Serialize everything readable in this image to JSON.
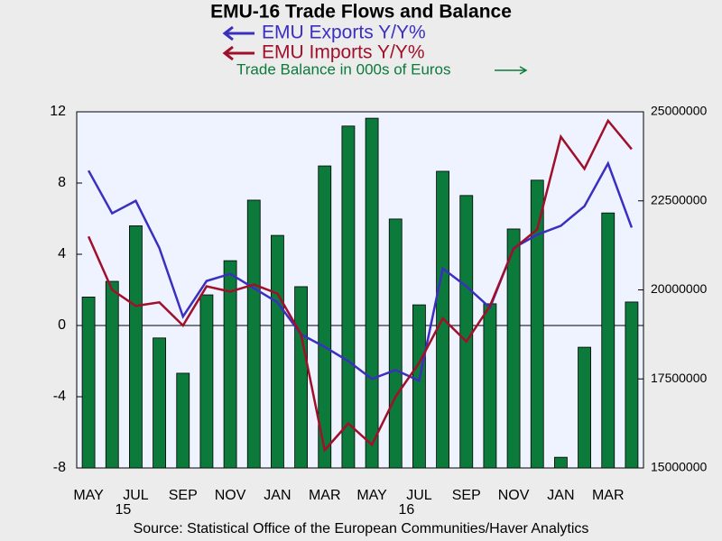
{
  "chart_data": {
    "type": "combo",
    "title": "EMU-16 Trade Flows and Balance",
    "source": "Source:  Statistical Office of the European Communities/Haver Analytics",
    "categories": [
      "MAY",
      null,
      "JUL",
      null,
      "SEP",
      null,
      "NOV",
      null,
      "JAN",
      null,
      "MAR",
      null,
      "MAY",
      null,
      "JUL",
      null,
      "SEP",
      null,
      "NOV",
      null,
      "JAN",
      null,
      "MAR",
      null
    ],
    "year_labels": [
      null,
      null,
      "15",
      null,
      null,
      null,
      null,
      null,
      null,
      null,
      null,
      null,
      null,
      null,
      "16",
      null,
      null,
      null,
      null,
      null,
      null,
      null,
      null,
      null
    ],
    "series": [
      {
        "name": "Trade Balance in 000s of Euros",
        "type": "bar",
        "axis": "y2",
        "color": "#0b7a3b",
        "values": [
          19800000,
          20240000,
          21800000,
          18650000,
          17660000,
          19860000,
          20820000,
          22520000,
          21530000,
          20090000,
          23480000,
          24600000,
          24820000,
          21990000,
          19580000,
          23330000,
          22650000,
          19610000,
          21710000,
          23080000,
          15300000,
          18390000,
          22160000,
          19660000
        ]
      },
      {
        "name": "EMU Exports Y/Y%",
        "type": "line",
        "color": "#3b2fc0",
        "values": [
          8.7,
          6.3,
          7.0,
          4.35,
          0.5,
          2.5,
          2.9,
          2.1,
          1.3,
          -0.5,
          -1.2,
          -2.0,
          -3.0,
          -2.5,
          -3.1,
          3.2,
          2.2,
          1.0,
          4.35,
          5.1,
          5.6,
          6.7,
          9.1,
          5.5
        ]
      },
      {
        "name": "EMU Imports Y/Y%",
        "type": "line",
        "color": "#a0102a",
        "values": [
          5.0,
          2.0,
          1.1,
          1.3,
          0.0,
          2.2,
          1.9,
          2.3,
          1.8,
          -0.5,
          -7.0,
          -5.5,
          -6.7,
          -4.0,
          -2.1,
          0.4,
          -0.9,
          1.1,
          4.3,
          5.4,
          10.6,
          8.8,
          11.5,
          9.9
        ]
      }
    ],
    "ylim": [
      -8,
      12
    ],
    "yticks": [
      -8,
      -4,
      0,
      4,
      8,
      12
    ],
    "y2lim": [
      15000000,
      25000000
    ],
    "y2ticks": [
      15000000,
      17500000,
      20000000,
      22500000,
      25000000
    ]
  }
}
